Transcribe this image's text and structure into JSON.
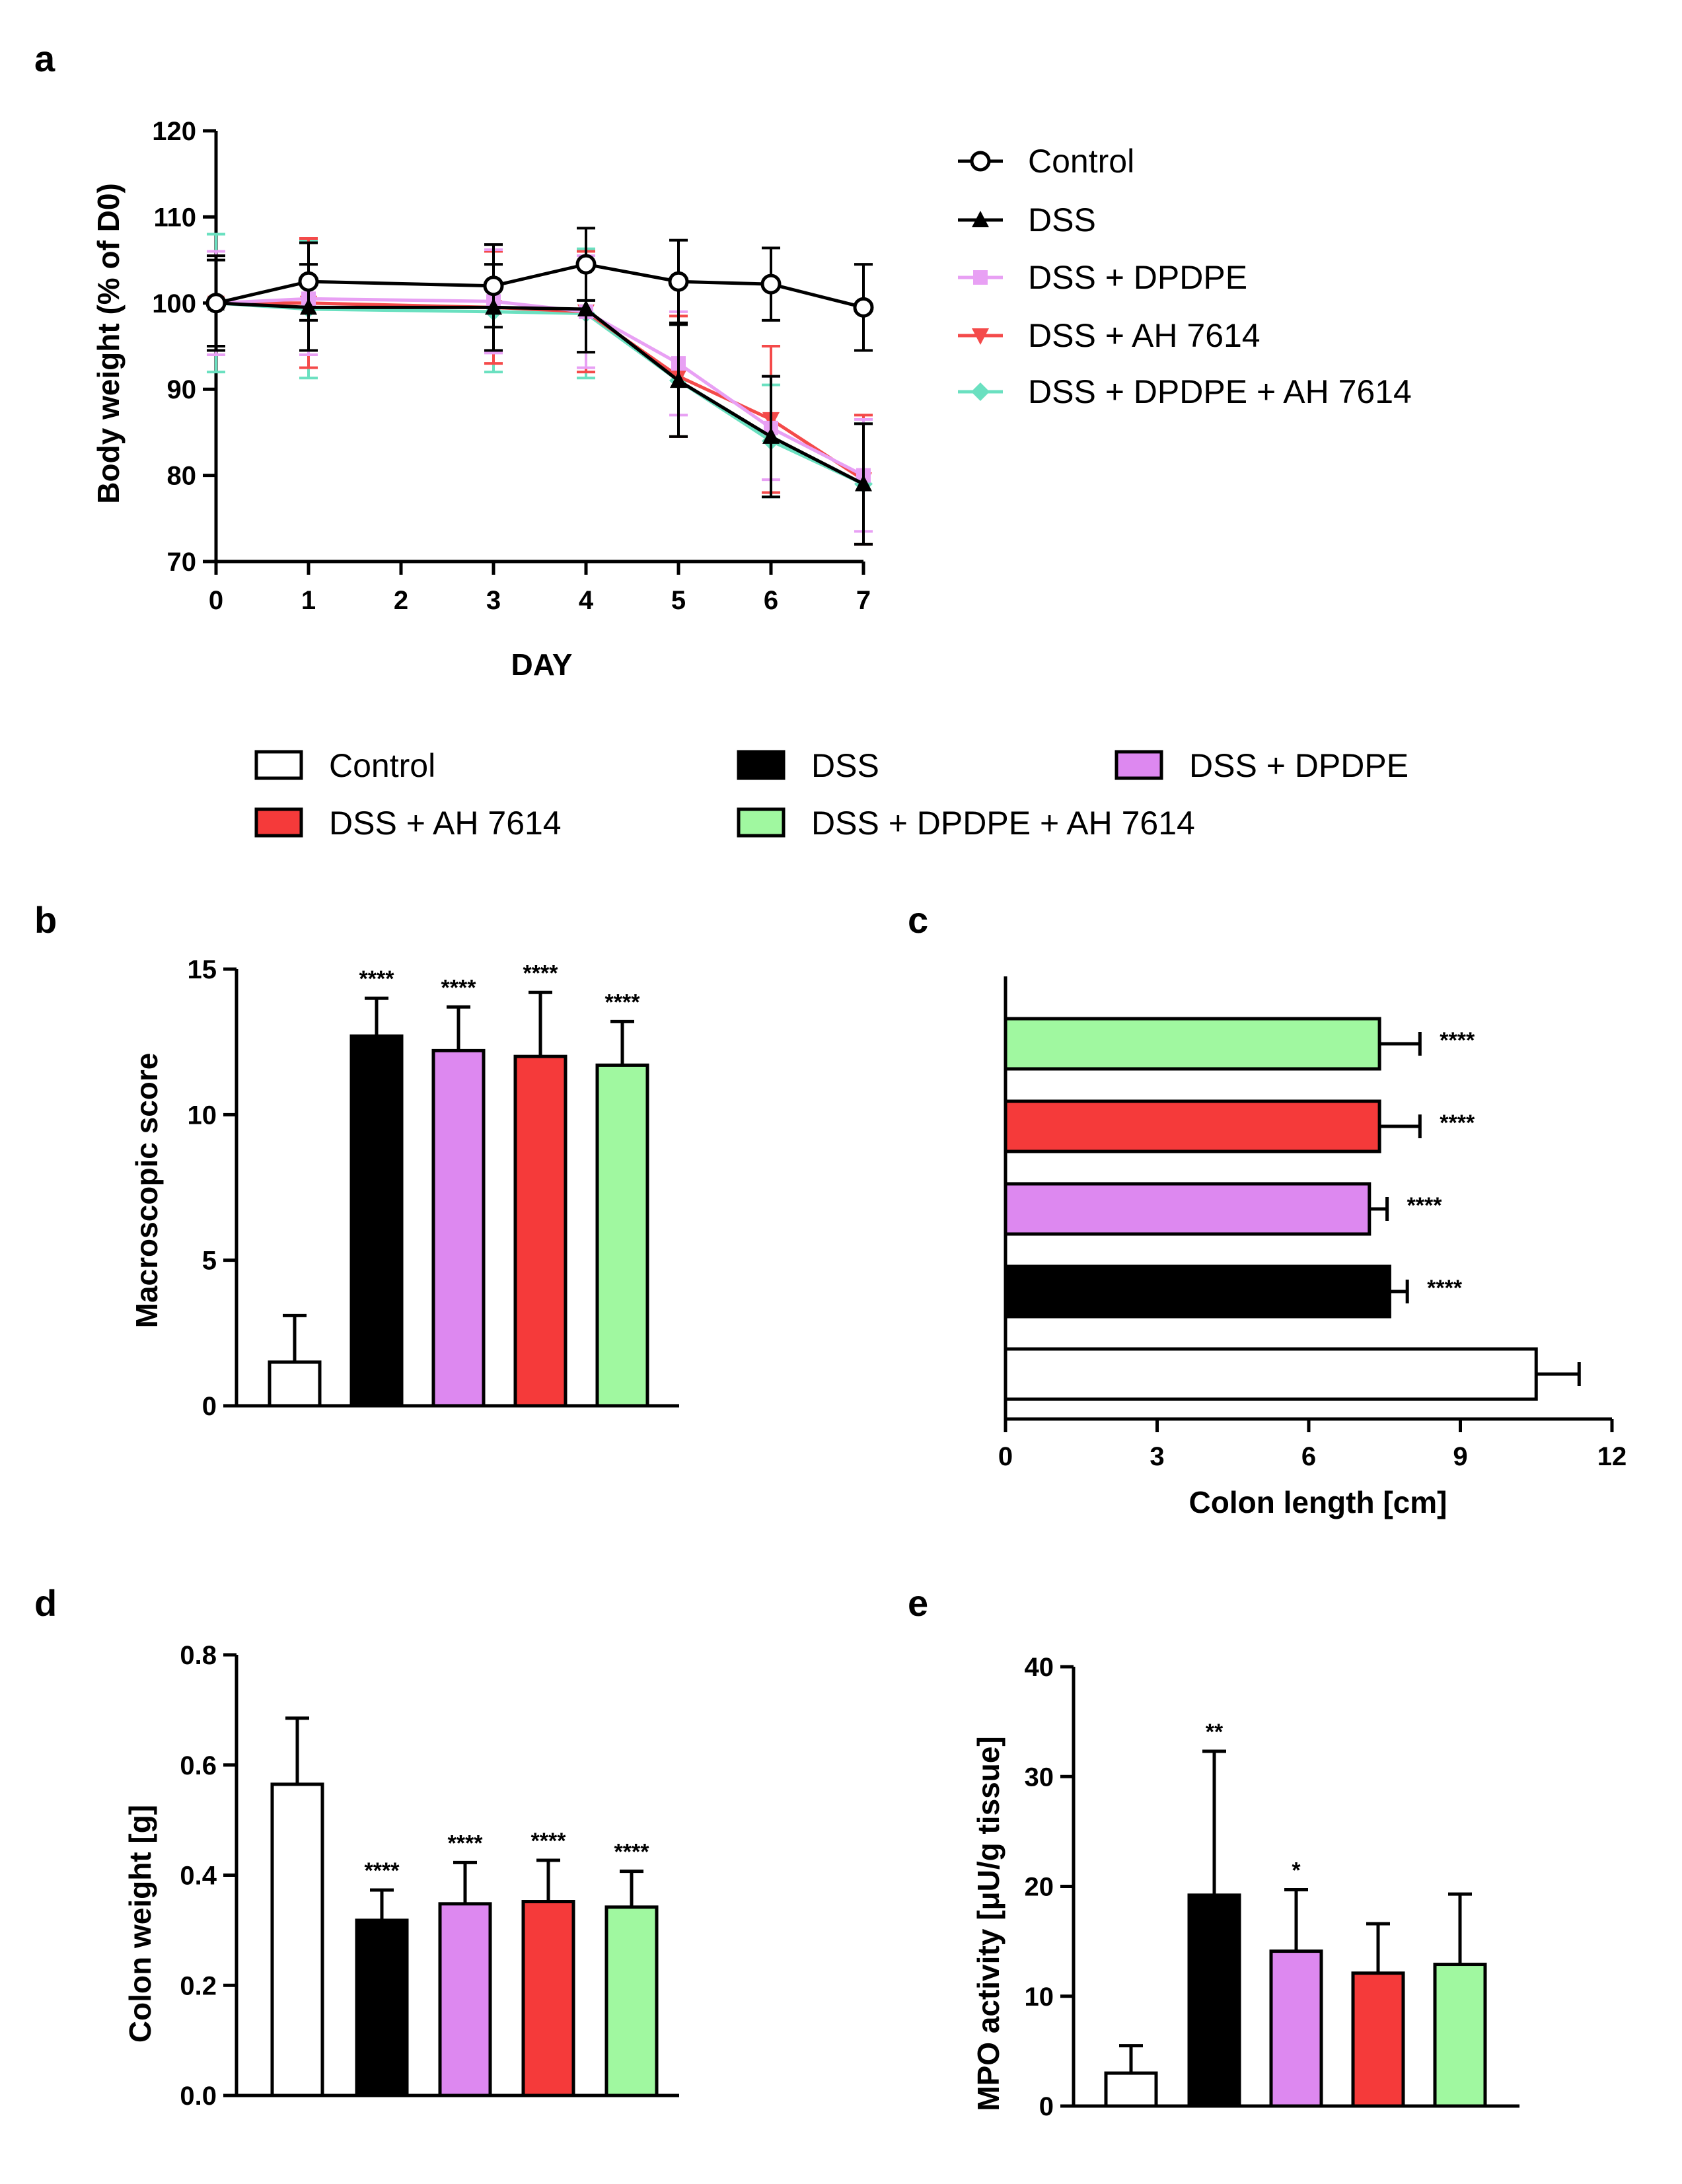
{
  "colors": {
    "Control": "#ffffff",
    "DSS": "#000000",
    "DSS + DPDPE": "#dd88f0",
    "DSS + AH 7614": "#f53a3a",
    "DSS + DPDPE + AH 7614": "#a0f8a0"
  },
  "line_colors": {
    "Control": "#000000",
    "DSS": "#000000",
    "DSS + DPDPE": "#e8a0f4",
    "DSS + AH 7614": "#f44a4a",
    "DSS + DPDPE + AH 7614": "#6ae0c0"
  },
  "panel_a": {
    "letter": "a",
    "legend": [
      "Control",
      "DSS",
      "DSS + DPDPE",
      "DSS + AH 7614",
      "DSS + DPDPE + AH 7614"
    ]
  },
  "bar_legend": {
    "entries": [
      "Control",
      "DSS",
      "DSS + DPDPE",
      "DSS + AH 7614",
      "DSS + DPDPE + AH 7614"
    ]
  },
  "panel_b": {
    "letter": "b"
  },
  "panel_c": {
    "letter": "c"
  },
  "panel_d": {
    "letter": "d"
  },
  "panel_e": {
    "letter": "e"
  },
  "chart_data": [
    {
      "id": "a",
      "type": "line",
      "title": "",
      "xlabel": "DAY",
      "ylabel": "Body weight (% of D0)",
      "x": [
        0,
        1,
        3,
        4,
        5,
        6,
        7
      ],
      "xlim": [
        0,
        7
      ],
      "xticks": [
        0,
        1,
        2,
        3,
        4,
        5,
        6,
        7
      ],
      "ylim": [
        70,
        120
      ],
      "yticks": [
        70,
        80,
        90,
        100,
        110,
        120
      ],
      "grid": false,
      "legend_position": "right",
      "series": [
        {
          "name": "Control",
          "values": [
            100,
            102.5,
            102,
            104.5,
            102.5,
            102.2,
            99.5
          ],
          "errors": [
            5,
            4.5,
            4.8,
            4.2,
            4.8,
            4.2,
            5
          ],
          "marker": "open-circle"
        },
        {
          "name": "DSS",
          "values": [
            100,
            99.5,
            99.5,
            99.3,
            91,
            84.5,
            79
          ],
          "errors": [
            5.5,
            5,
            5,
            5,
            6.5,
            7,
            7
          ],
          "marker": "triangle"
        },
        {
          "name": "DSS + DPDPE",
          "values": [
            100,
            100.5,
            100.2,
            99,
            93,
            85.5,
            80
          ],
          "errors": [
            6,
            6.5,
            6,
            6.5,
            6,
            6,
            6.5
          ],
          "marker": "square"
        },
        {
          "name": "DSS + AH 7614",
          "values": [
            100,
            100,
            99.5,
            99,
            91.5,
            86.5,
            79.5
          ],
          "errors": [
            6,
            7.5,
            6.5,
            7,
            7,
            8.5,
            7.5
          ],
          "marker": "triangle-down"
        },
        {
          "name": "DSS + DPDPE + AH 7614",
          "values": [
            100,
            99.3,
            99,
            98.8,
            91,
            84,
            79
          ],
          "errors": [
            8,
            8,
            7,
            7.5,
            6.5,
            6.5,
            7
          ],
          "marker": "diamond"
        }
      ]
    },
    {
      "id": "b",
      "type": "bar",
      "title": "",
      "xlabel": "",
      "ylabel": "Macroscopic score",
      "categories": [
        "Control",
        "DSS",
        "DSS + DPDPE",
        "DSS + AH 7614",
        "DSS + DPDPE + AH 7614"
      ],
      "values": [
        1.5,
        12.7,
        12.2,
        12.0,
        11.7
      ],
      "errors": [
        1.6,
        1.3,
        1.5,
        2.2,
        1.5
      ],
      "significance": [
        "",
        "****",
        "****",
        "****",
        "****"
      ],
      "ylim": [
        0,
        15
      ],
      "yticks": [
        0,
        5,
        10,
        15
      ],
      "grid": false
    },
    {
      "id": "c",
      "type": "bar",
      "orientation": "horizontal",
      "title": "",
      "xlabel": "Colon length [cm]",
      "ylabel": "",
      "categories": [
        "Control",
        "DSS",
        "DSS + DPDPE",
        "DSS + AH 7614",
        "DSS + DPDPE + AH 7614"
      ],
      "values": [
        10.5,
        7.6,
        7.2,
        7.4,
        7.4
      ],
      "errors": [
        0.85,
        0.35,
        0.35,
        0.8,
        0.8
      ],
      "significance": [
        "",
        "****",
        "****",
        "****",
        "****"
      ],
      "xlim": [
        0,
        12
      ],
      "xticks": [
        0,
        3,
        6,
        9,
        12
      ],
      "grid": false
    },
    {
      "id": "d",
      "type": "bar",
      "title": "",
      "xlabel": "",
      "ylabel": "Colon weight [g]",
      "categories": [
        "Control",
        "DSS",
        "DSS + DPDPE",
        "DSS + AH 7614",
        "DSS + DPDPE + AH 7614"
      ],
      "values": [
        0.565,
        0.318,
        0.348,
        0.352,
        0.342
      ],
      "errors": [
        0.12,
        0.055,
        0.075,
        0.075,
        0.065
      ],
      "significance": [
        "",
        "****",
        "****",
        "****",
        "****"
      ],
      "ylim": [
        0,
        0.8
      ],
      "yticks": [
        0.0,
        0.2,
        0.4,
        0.6,
        0.8
      ],
      "ytick_labels": [
        "0.0",
        "0.2",
        "0.4",
        "0.6",
        "0.8"
      ],
      "grid": false
    },
    {
      "id": "e",
      "type": "bar",
      "title": "",
      "xlabel": "",
      "ylabel": "MPO activity [μU/g tissue]",
      "categories": [
        "Control",
        "DSS",
        "DSS + DPDPE",
        "DSS + AH 7614",
        "DSS + DPDPE + AH 7614"
      ],
      "values": [
        3,
        19.2,
        14.1,
        12.1,
        12.9
      ],
      "errors": [
        2.5,
        13.1,
        5.6,
        4.5,
        6.4
      ],
      "significance": [
        "",
        "**",
        "*",
        "",
        ""
      ],
      "ylim": [
        0,
        40
      ],
      "yticks": [
        0,
        10,
        20,
        30,
        40
      ],
      "grid": false
    }
  ]
}
